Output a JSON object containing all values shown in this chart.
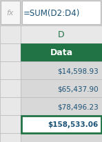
{
  "formula_bar_text": "=SUM(D2:D4)",
  "col_header": "D",
  "fx_label": "fx",
  "header_label": "Data",
  "values": [
    "$14,598.93",
    "$65,437.90",
    "$78,496.23"
  ],
  "sum_value": "$158,533.06",
  "header_bg": "#217346",
  "header_fg": "#ffffff",
  "col_header_fg": "#217346",
  "sum_fg": "#1a5276",
  "value_fg": "#1a5276",
  "formula_fg": "#1a5276",
  "fx_fg": "#aaaaaa",
  "cell_bg": "#e8e8e8",
  "data_cell_bg": "#d8d8d8",
  "sum_border_color": "#217346",
  "grid_color": "#bbbbbb",
  "outer_bg": "#d0d0d0",
  "formula_bar_bg": "#f5f5f5",
  "sum_bg": "#ffffff",
  "white_cell_bg": "#ffffff"
}
